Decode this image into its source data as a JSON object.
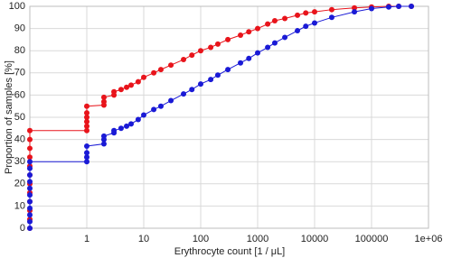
{
  "chart_data": {
    "type": "line",
    "xlabel": "Erythrocyte count [1 / μL]",
    "ylabel": "Proportion of samples [%]",
    "xscale": "log",
    "grid": true,
    "markers": true,
    "xlim": [
      0.1,
      1000000
    ],
    "ylim": [
      0,
      100
    ],
    "xticks": [
      1,
      10,
      100,
      1000,
      10000,
      100000,
      {
        "value": 1000000,
        "label": "1e+06"
      }
    ],
    "yticks": [
      0,
      10,
      20,
      30,
      40,
      50,
      60,
      70,
      80,
      90,
      100
    ],
    "series": [
      {
        "color": "#e8141b",
        "x": [
          0.1,
          0.1,
          0.1,
          0.1,
          0.1,
          0.1,
          0.1,
          0.1,
          0.1,
          0.1,
          0.1,
          0.1,
          1,
          1,
          1,
          1,
          1,
          1,
          2,
          2,
          2,
          3,
          3,
          4,
          5,
          6,
          8,
          10,
          15,
          20,
          30,
          50,
          70,
          100,
          150,
          200,
          300,
          500,
          700,
          1000,
          1500,
          2000,
          3000,
          5000,
          7000,
          10000,
          20000,
          50000,
          100000,
          200000,
          300000,
          500000
        ],
        "values": [
          0,
          4,
          8,
          12,
          16,
          20,
          24,
          28,
          32,
          36,
          40,
          44,
          44,
          46,
          48,
          50,
          52,
          55,
          55.5,
          57,
          59,
          60,
          61.5,
          62.5,
          63.5,
          64.5,
          66,
          68,
          70,
          71.5,
          73.5,
          76,
          78,
          80,
          81.5,
          83,
          85,
          87,
          88.5,
          90,
          92,
          93.5,
          94.5,
          96,
          97,
          97.5,
          98.5,
          99.3,
          99.7,
          100,
          100,
          100
        ]
      },
      {
        "color": "#1a1ad6",
        "x": [
          0.1,
          0.1,
          0.1,
          0.1,
          0.1,
          0.1,
          0.1,
          0.1,
          0.1,
          0.1,
          0.1,
          1,
          1,
          1,
          1,
          2,
          2,
          2,
          3,
          3,
          4,
          5,
          6,
          8,
          10,
          15,
          20,
          30,
          50,
          70,
          100,
          150,
          200,
          300,
          500,
          700,
          1000,
          1500,
          2000,
          3000,
          5000,
          7000,
          10000,
          20000,
          50000,
          100000,
          200000,
          300000,
          500000
        ],
        "values": [
          0,
          3,
          6,
          9,
          12,
          15,
          18,
          21,
          24,
          27,
          30,
          30,
          32,
          34,
          37,
          38,
          40,
          41.5,
          43,
          44,
          45,
          46,
          47,
          49,
          51,
          53.5,
          55,
          57.5,
          60.5,
          62.5,
          65,
          67,
          69,
          71.5,
          74.5,
          76.5,
          79,
          81.5,
          83.5,
          86,
          89,
          91,
          92.5,
          95,
          97.5,
          99,
          99.7,
          100,
          100
        ]
      }
    ]
  }
}
